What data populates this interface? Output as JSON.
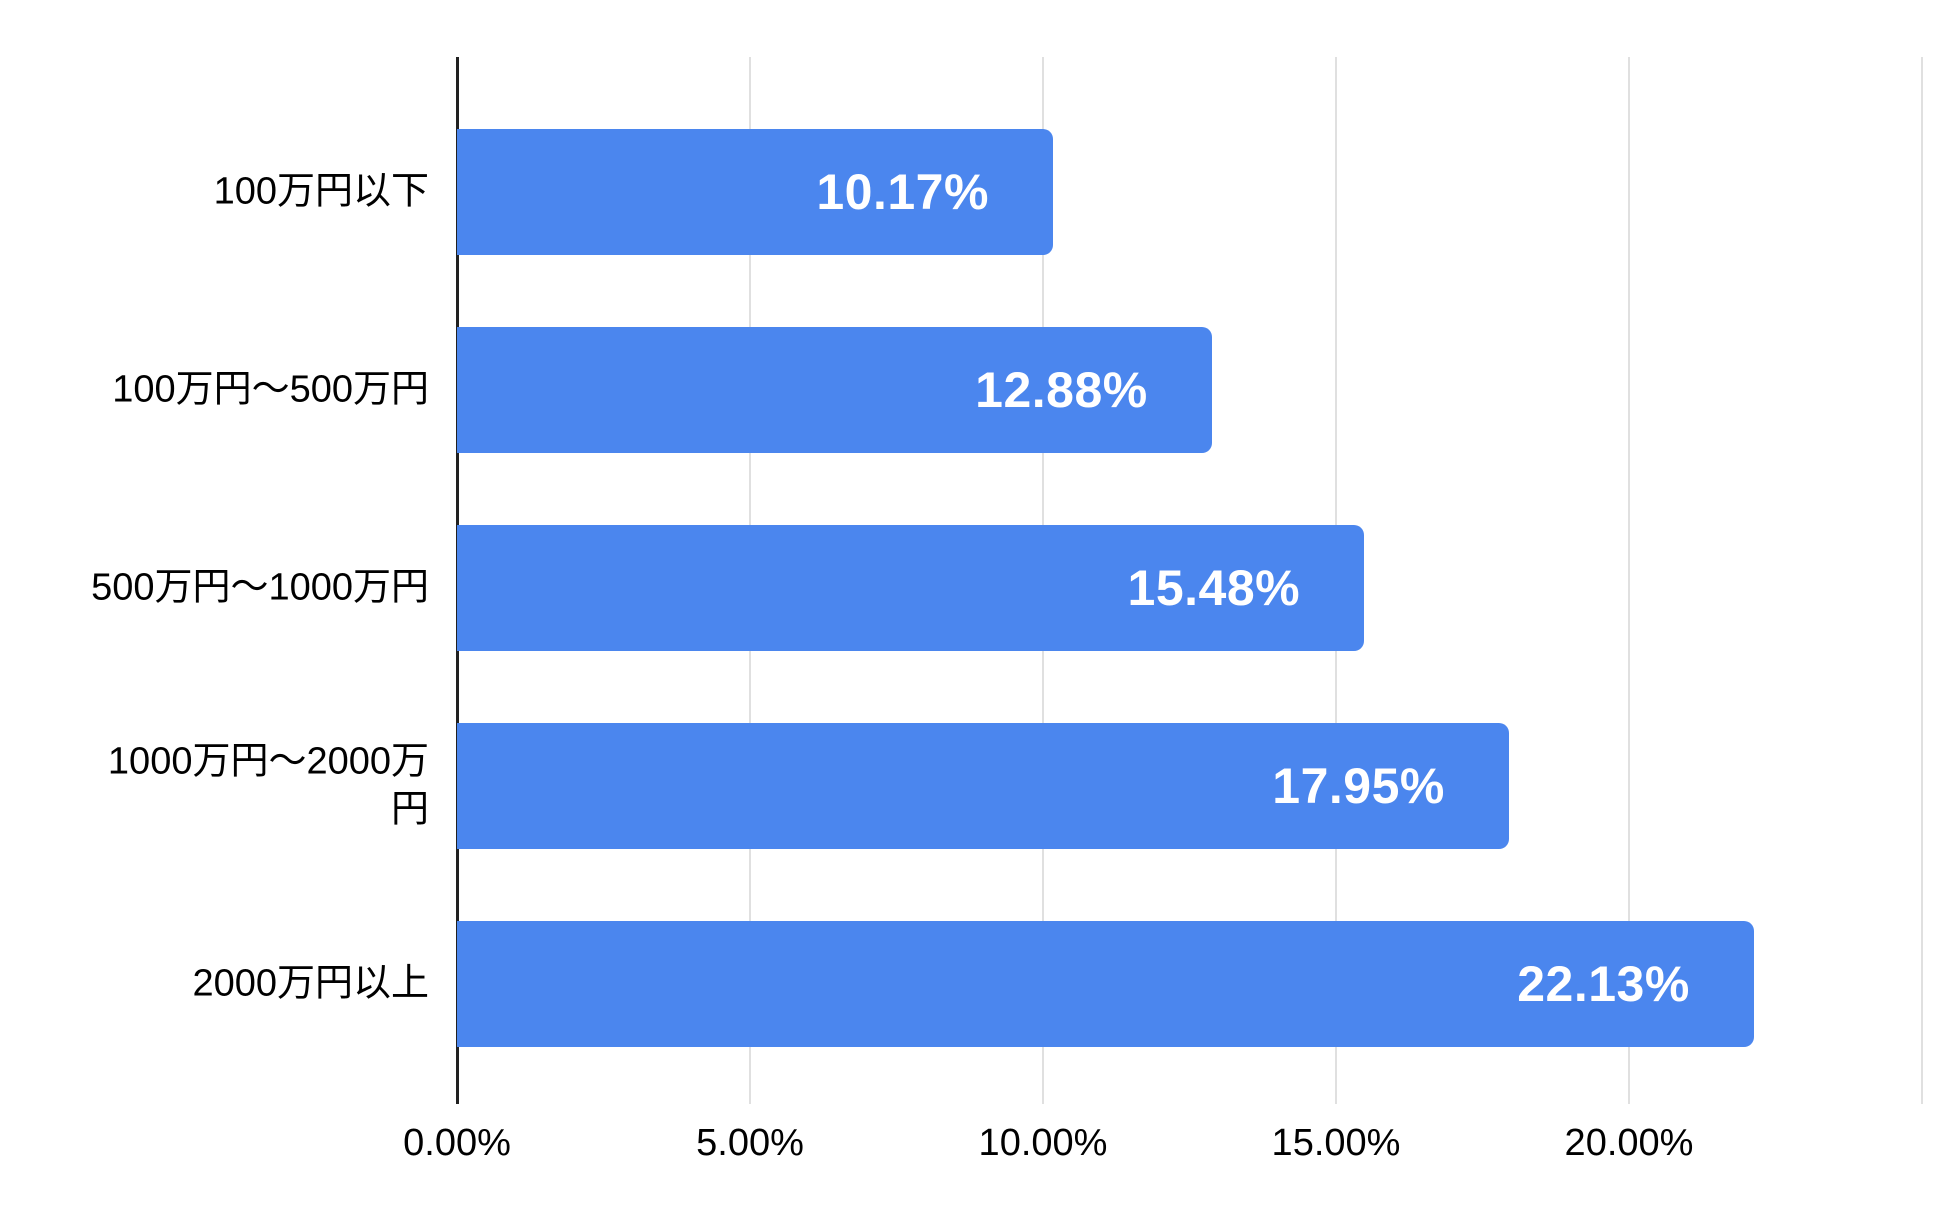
{
  "chart_data": {
    "type": "bar",
    "orientation": "horizontal",
    "categories": [
      "100万円以下",
      "100万円〜500万円",
      "500万円〜1000万円",
      "1000万円〜2000万円",
      "2000万円以上"
    ],
    "values": [
      10.17,
      12.88,
      15.48,
      17.95,
      22.13
    ],
    "value_labels": [
      "10.17%",
      "12.88%",
      "15.48%",
      "17.95%",
      "22.13%"
    ],
    "category_display_lines": [
      [
        "100万円以下"
      ],
      [
        "100万円〜500万円"
      ],
      [
        "500万円〜1000万円"
      ],
      [
        "1000万円〜2000万",
        "円"
      ],
      [
        "2000万円以上"
      ]
    ],
    "x_axis": {
      "min": 0,
      "max": 25,
      "tick_values": [
        0,
        5,
        10,
        15,
        20
      ],
      "tick_labels": [
        "0.00%",
        "5.00%",
        "10.00%",
        "15.00%",
        "20.00%"
      ],
      "grid": true,
      "unlabeled_gridline_at": 25
    },
    "legend": "none",
    "title": "",
    "colors": {
      "bar": "#4b86ee",
      "value_label": "#ffffff",
      "axis_line": "#212121",
      "gridline": "#e0e0e0",
      "tick_label": "#000000",
      "category_label": "#000000",
      "background": "#ffffff"
    }
  }
}
